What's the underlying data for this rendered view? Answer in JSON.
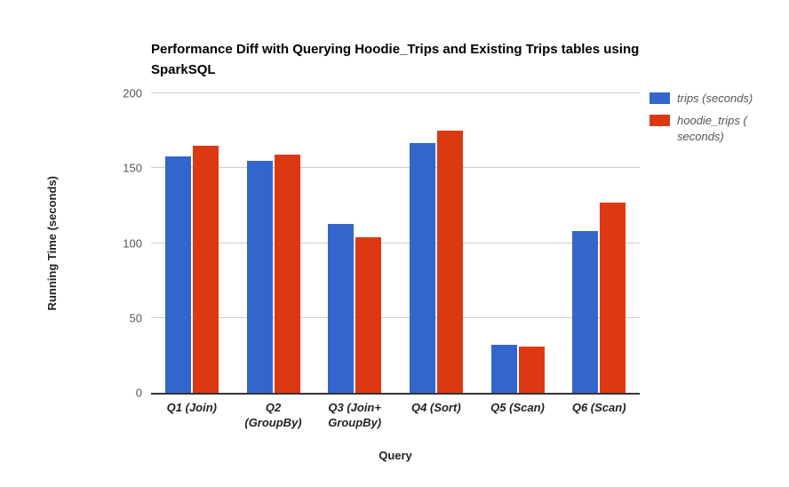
{
  "chart_data": {
    "type": "bar",
    "title": "Performance Diff with Querying Hoodie_Trips and Existing Trips tables using SparkSQL",
    "xlabel": "Query",
    "ylabel": "Running Time (seconds)",
    "ylim": [
      0,
      200
    ],
    "yticks": [
      0,
      50,
      100,
      150,
      200
    ],
    "grid": true,
    "legend_position": "right",
    "categories": [
      "Q1 (Join)",
      "Q2 (GroupBy)",
      "Q3 (Join+ GroupBy)",
      "Q4 (Sort)",
      "Q5 (Scan)",
      "Q6 (Scan)"
    ],
    "series": [
      {
        "name": "trips (seconds)",
        "color": "#3366cc",
        "values": [
          158,
          155,
          113,
          167,
          32,
          108
        ]
      },
      {
        "name": "hoodie_trips ( seconds)",
        "color": "#dc3912",
        "values": [
          165,
          159,
          104,
          175,
          31,
          127
        ]
      }
    ],
    "colors": {
      "trips": "#3366cc",
      "hoodie_trips": "#dc3912",
      "gridline": "#cccccc",
      "baseline": "#333333"
    }
  }
}
